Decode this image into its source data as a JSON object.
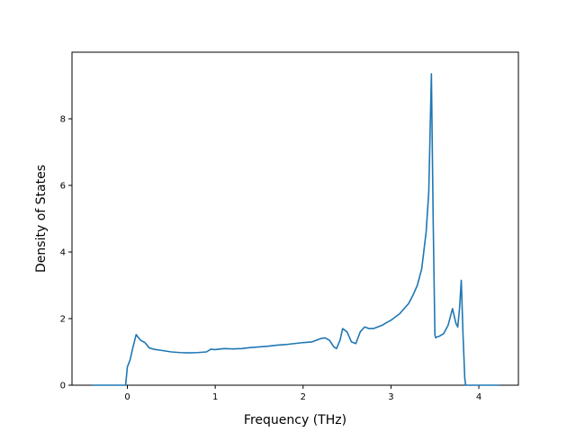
{
  "chart_data": {
    "type": "line",
    "title": "",
    "xlabel": "Frequency (THz)",
    "ylabel": "Density of States",
    "xlim": [
      -0.63,
      4.45
    ],
    "ylim": [
      0,
      10.0
    ],
    "xticks": [
      0,
      1,
      2,
      3,
      4
    ],
    "yticks": [
      0,
      2,
      4,
      6,
      8
    ],
    "xtick_labels": [
      "0",
      "1",
      "2",
      "3",
      "4"
    ],
    "ytick_labels": [
      "0",
      "2",
      "4",
      "6",
      "8"
    ],
    "grid": false,
    "legend": "none",
    "series": [
      {
        "color": "#1f77b4",
        "x": [
          -0.4,
          -0.2,
          -0.02,
          0.0,
          0.03,
          0.06,
          0.1,
          0.12,
          0.15,
          0.2,
          0.25,
          0.3,
          0.4,
          0.5,
          0.6,
          0.7,
          0.8,
          0.9,
          0.95,
          1.0,
          1.1,
          1.2,
          1.3,
          1.4,
          1.5,
          1.6,
          1.7,
          1.8,
          1.9,
          2.0,
          2.1,
          2.2,
          2.25,
          2.3,
          2.35,
          2.38,
          2.42,
          2.45,
          2.5,
          2.55,
          2.6,
          2.65,
          2.7,
          2.75,
          2.8,
          2.85,
          2.9,
          2.95,
          3.0,
          3.05,
          3.1,
          3.15,
          3.2,
          3.25,
          3.3,
          3.35,
          3.4,
          3.43,
          3.46,
          3.48,
          3.5,
          3.51,
          3.52,
          3.55,
          3.6,
          3.65,
          3.7,
          3.74,
          3.76,
          3.78,
          3.8,
          3.82,
          3.84,
          3.85,
          3.86,
          3.9,
          4.0,
          4.1,
          4.23
        ],
        "y": [
          0,
          0,
          0,
          0.55,
          0.75,
          1.1,
          1.52,
          1.45,
          1.35,
          1.28,
          1.12,
          1.08,
          1.04,
          1.0,
          0.98,
          0.97,
          0.98,
          1.0,
          1.08,
          1.07,
          1.1,
          1.09,
          1.1,
          1.13,
          1.15,
          1.17,
          1.2,
          1.22,
          1.25,
          1.28,
          1.3,
          1.4,
          1.42,
          1.35,
          1.15,
          1.1,
          1.35,
          1.7,
          1.6,
          1.3,
          1.25,
          1.6,
          1.75,
          1.7,
          1.7,
          1.75,
          1.8,
          1.88,
          1.95,
          2.05,
          2.15,
          2.3,
          2.45,
          2.7,
          3.0,
          3.5,
          4.6,
          5.8,
          9.35,
          5.0,
          1.5,
          1.42,
          1.45,
          1.47,
          1.55,
          1.8,
          2.3,
          1.85,
          1.75,
          2.3,
          3.15,
          1.5,
          0.2,
          0,
          0,
          0,
          0,
          0,
          0
        ]
      }
    ]
  }
}
